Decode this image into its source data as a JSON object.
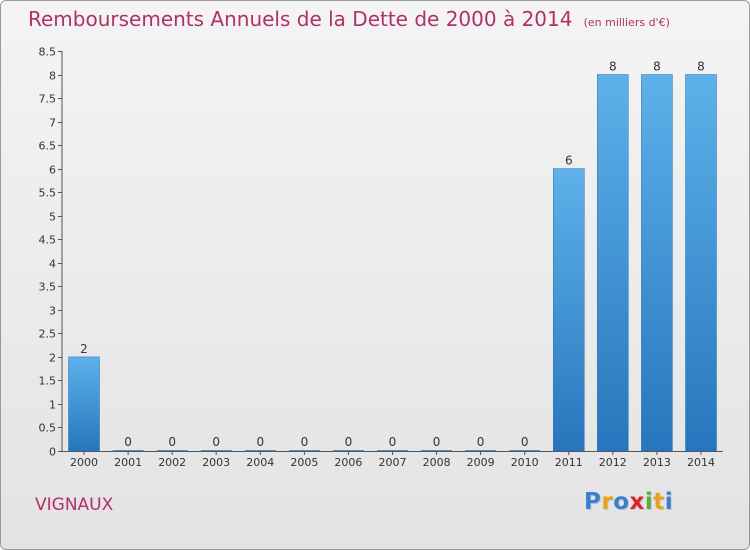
{
  "chart_data": {
    "type": "bar",
    "title": "Remboursements Annuels de la Dette de 2000 à 2014",
    "unit": "(en milliers d'€)",
    "categories": [
      "2000",
      "2001",
      "2002",
      "2003",
      "2004",
      "2005",
      "2006",
      "2007",
      "2008",
      "2009",
      "2010",
      "2011",
      "2012",
      "2013",
      "2014"
    ],
    "values": [
      2,
      0,
      0,
      0,
      0,
      0,
      0,
      0,
      0,
      0,
      0,
      6,
      8,
      8,
      8
    ],
    "ylim": [
      0,
      8.5
    ],
    "yticks": [
      0,
      0.5,
      1,
      1.5,
      2,
      2.5,
      3,
      3.5,
      4,
      4.5,
      5,
      5.5,
      6,
      6.5,
      7,
      7.5,
      8,
      8.5
    ],
    "ytick_labels": [
      "0",
      "0.5",
      "1",
      "1.5",
      "2",
      "2.5",
      "3",
      "3.5",
      "4",
      "4.5",
      "5",
      "5.5",
      "6",
      "6.5",
      "7",
      "7.5",
      "8",
      "8.5"
    ],
    "bar_color": "#3a8fd6",
    "grid": false
  },
  "place_name": "VIGNAUX",
  "logo": {
    "letters": [
      "P",
      "r",
      "o",
      "x",
      "i",
      "t",
      "i"
    ],
    "colors": [
      "#3a7ecf",
      "#e8a21a",
      "#3a7ecf",
      "#d8262b",
      "#5aac3a",
      "#e8a21a",
      "#3a7ecf"
    ]
  }
}
